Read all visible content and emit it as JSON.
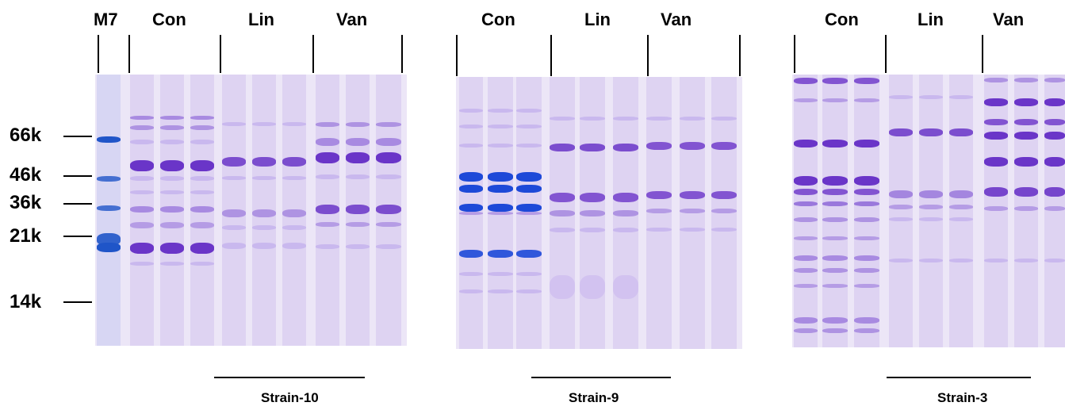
{
  "panels": [
    {
      "lane_labels": [
        "M7",
        "Con",
        "Lin",
        "Van"
      ],
      "strain": "Strain-10"
    },
    {
      "lane_labels": [
        "Con",
        "Lin",
        "Van"
      ],
      "strain": "Strain-9"
    },
    {
      "lane_labels": [
        "Con",
        "Lin",
        "Van"
      ],
      "strain": "Strain-3"
    }
  ],
  "markers": [
    "66k",
    "46k",
    "36k",
    "21k",
    "14k"
  ],
  "colors": {
    "gel_background": "#ece6f7",
    "band_strong": "#6a35c8",
    "band_medium": "#9a78dc",
    "band_faint": "#c9b8ee",
    "marker_band": "#1f55c8",
    "con9_band": "#1d49d8"
  }
}
